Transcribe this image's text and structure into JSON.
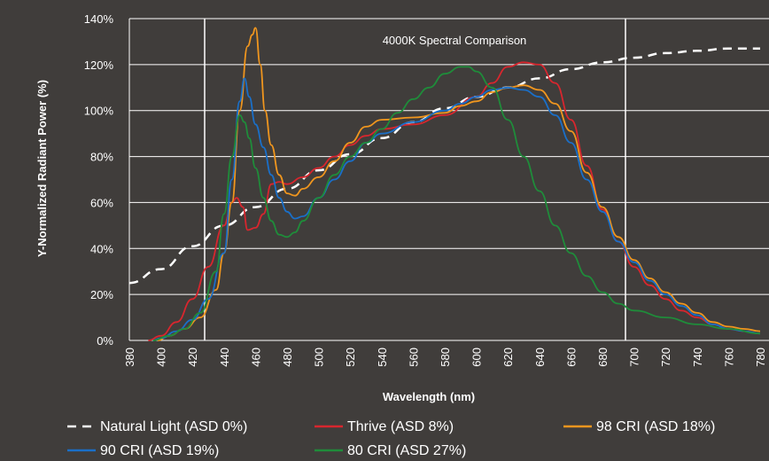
{
  "chart_data": {
    "type": "line",
    "title": "4000K Spectral Comparison",
    "xlabel": "Wavelength (nm)",
    "ylabel": "Y-Normalized Radiant Power (%)",
    "xlim": [
      380,
      780
    ],
    "ylim": [
      0,
      140
    ],
    "x_ticks": [
      380,
      400,
      420,
      440,
      460,
      480,
      500,
      520,
      540,
      560,
      580,
      600,
      620,
      640,
      660,
      680,
      700,
      720,
      740,
      760,
      780
    ],
    "y_ticks": [
      "0%",
      "20%",
      "40%",
      "60%",
      "80%",
      "100%",
      "120%",
      "140%"
    ],
    "grid": "horizontal",
    "legend_position": "bottom",
    "series": [
      {
        "name": "Natural Light (ASD 0%)",
        "color": "#ffffff",
        "dash": true,
        "points": [
          [
            380,
            25
          ],
          [
            400,
            31
          ],
          [
            420,
            41
          ],
          [
            440,
            50
          ],
          [
            460,
            58
          ],
          [
            480,
            66
          ],
          [
            500,
            74
          ],
          [
            520,
            81
          ],
          [
            540,
            88
          ],
          [
            560,
            95
          ],
          [
            580,
            101
          ],
          [
            600,
            106
          ],
          [
            620,
            110
          ],
          [
            640,
            114
          ],
          [
            660,
            118
          ],
          [
            680,
            121
          ],
          [
            700,
            123
          ],
          [
            720,
            125
          ],
          [
            740,
            126
          ],
          [
            760,
            127
          ],
          [
            780,
            127
          ]
        ]
      },
      {
        "name": "Thrive (ASD 8%)",
        "color": "#d8262e",
        "points": [
          [
            392,
            0
          ],
          [
            400,
            2
          ],
          [
            410,
            8
          ],
          [
            420,
            18
          ],
          [
            430,
            32
          ],
          [
            440,
            50
          ],
          [
            445,
            60
          ],
          [
            448,
            62
          ],
          [
            452,
            58
          ],
          [
            455,
            48
          ],
          [
            460,
            49
          ],
          [
            465,
            55
          ],
          [
            470,
            68
          ],
          [
            475,
            69
          ],
          [
            480,
            68
          ],
          [
            490,
            71
          ],
          [
            500,
            75
          ],
          [
            510,
            80
          ],
          [
            520,
            85
          ],
          [
            530,
            89
          ],
          [
            540,
            92
          ],
          [
            560,
            94
          ],
          [
            580,
            98
          ],
          [
            600,
            106
          ],
          [
            610,
            112
          ],
          [
            620,
            119
          ],
          [
            630,
            121
          ],
          [
            640,
            120
          ],
          [
            650,
            112
          ],
          [
            660,
            96
          ],
          [
            670,
            76
          ],
          [
            680,
            57
          ],
          [
            690,
            43
          ],
          [
            700,
            32
          ],
          [
            710,
            24
          ],
          [
            720,
            18
          ],
          [
            730,
            13
          ],
          [
            740,
            10
          ],
          [
            750,
            7
          ],
          [
            760,
            5
          ],
          [
            770,
            4
          ],
          [
            780,
            3
          ]
        ]
      },
      {
        "name": "98 CRI (ASD 18%)",
        "color": "#f0961e",
        "points": [
          [
            398,
            0
          ],
          [
            405,
            2
          ],
          [
            415,
            5
          ],
          [
            425,
            10
          ],
          [
            435,
            22
          ],
          [
            440,
            38
          ],
          [
            445,
            60
          ],
          [
            450,
            100
          ],
          [
            455,
            128
          ],
          [
            458,
            133
          ],
          [
            460,
            136
          ],
          [
            463,
            120
          ],
          [
            466,
            100
          ],
          [
            470,
            85
          ],
          [
            475,
            72
          ],
          [
            480,
            64
          ],
          [
            485,
            63
          ],
          [
            490,
            66
          ],
          [
            500,
            71
          ],
          [
            510,
            78
          ],
          [
            520,
            86
          ],
          [
            530,
            93
          ],
          [
            540,
            96
          ],
          [
            560,
            97
          ],
          [
            580,
            99
          ],
          [
            590,
            102
          ],
          [
            600,
            104
          ],
          [
            610,
            108
          ],
          [
            620,
            110
          ],
          [
            630,
            111
          ],
          [
            640,
            109
          ],
          [
            650,
            103
          ],
          [
            660,
            91
          ],
          [
            670,
            73
          ],
          [
            680,
            58
          ],
          [
            690,
            45
          ],
          [
            700,
            35
          ],
          [
            710,
            27
          ],
          [
            720,
            21
          ],
          [
            730,
            16
          ],
          [
            740,
            12
          ],
          [
            750,
            8
          ],
          [
            760,
            6
          ],
          [
            770,
            5
          ],
          [
            780,
            4
          ]
        ]
      },
      {
        "name": "90 CRI (ASD 19%)",
        "color": "#1a6fc8",
        "points": [
          [
            395,
            0
          ],
          [
            400,
            1
          ],
          [
            410,
            4
          ],
          [
            420,
            9
          ],
          [
            430,
            18
          ],
          [
            440,
            38
          ],
          [
            445,
            70
          ],
          [
            450,
            104
          ],
          [
            453,
            114
          ],
          [
            456,
            106
          ],
          [
            460,
            94
          ],
          [
            465,
            84
          ],
          [
            470,
            72
          ],
          [
            475,
            62
          ],
          [
            480,
            56
          ],
          [
            485,
            53
          ],
          [
            490,
            54
          ],
          [
            500,
            62
          ],
          [
            510,
            70
          ],
          [
            520,
            78
          ],
          [
            530,
            86
          ],
          [
            540,
            90
          ],
          [
            560,
            95
          ],
          [
            580,
            100
          ],
          [
            590,
            103
          ],
          [
            600,
            106
          ],
          [
            610,
            109
          ],
          [
            620,
            110
          ],
          [
            630,
            109
          ],
          [
            640,
            106
          ],
          [
            650,
            98
          ],
          [
            660,
            86
          ],
          [
            670,
            70
          ],
          [
            680,
            56
          ],
          [
            690,
            43
          ],
          [
            700,
            34
          ],
          [
            710,
            26
          ],
          [
            720,
            20
          ],
          [
            730,
            15
          ],
          [
            740,
            11
          ],
          [
            750,
            7
          ],
          [
            760,
            5
          ],
          [
            770,
            4
          ],
          [
            780,
            3
          ]
        ]
      },
      {
        "name": "80 CRI (ASD 27%)",
        "color": "#1f8c3a",
        "points": [
          [
            395,
            0
          ],
          [
            405,
            2
          ],
          [
            415,
            5
          ],
          [
            425,
            12
          ],
          [
            435,
            30
          ],
          [
            440,
            55
          ],
          [
            445,
            80
          ],
          [
            450,
            98
          ],
          [
            453,
            95
          ],
          [
            456,
            88
          ],
          [
            460,
            75
          ],
          [
            465,
            62
          ],
          [
            470,
            52
          ],
          [
            475,
            46
          ],
          [
            480,
            45
          ],
          [
            485,
            47
          ],
          [
            490,
            52
          ],
          [
            500,
            62
          ],
          [
            510,
            72
          ],
          [
            520,
            80
          ],
          [
            530,
            86
          ],
          [
            540,
            92
          ],
          [
            550,
            99
          ],
          [
            560,
            105
          ],
          [
            570,
            110
          ],
          [
            580,
            116
          ],
          [
            590,
            119
          ],
          [
            595,
            119
          ],
          [
            600,
            117
          ],
          [
            610,
            110
          ],
          [
            620,
            96
          ],
          [
            630,
            80
          ],
          [
            640,
            65
          ],
          [
            650,
            50
          ],
          [
            660,
            38
          ],
          [
            670,
            28
          ],
          [
            680,
            21
          ],
          [
            690,
            16
          ],
          [
            700,
            13
          ],
          [
            720,
            10
          ],
          [
            740,
            7
          ],
          [
            760,
            5
          ],
          [
            780,
            3
          ]
        ]
      }
    ]
  }
}
